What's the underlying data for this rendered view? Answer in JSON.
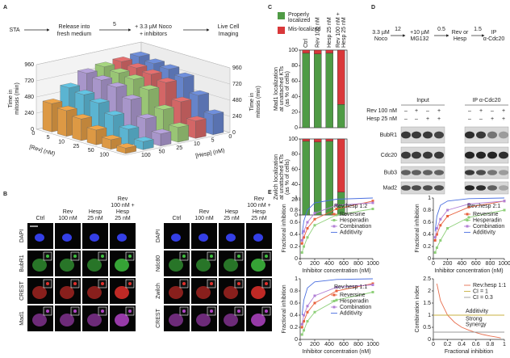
{
  "panels": {
    "A": {
      "label": "A",
      "flow": {
        "steps": [
          [
            "STA"
          ],
          [
            "Release into",
            "fresh medium"
          ],
          [
            "+ 3.3 µM Noco",
            "+ inhibitors"
          ],
          [
            "Live Cell",
            "Imaging"
          ]
        ],
        "time": "5"
      },
      "chart": {
        "type": "bar3d",
        "z_label": [
          "Time in",
          "mitosis (min)"
        ],
        "x_label": "[Rev] (nM)",
        "y_label": "[Hesp] (nM)",
        "rev_levels": [
          0,
          5,
          10,
          25,
          50,
          100
        ],
        "hesp_levels": [
          0,
          5,
          10,
          25,
          50,
          100
        ],
        "zlim": [
          0,
          960
        ],
        "zticks": [
          0,
          240,
          480,
          720,
          960
        ],
        "series": [
          {
            "color": "#6f8fdc",
            "values": [
              840,
              800,
              780,
              720,
              520,
              300
            ]
          },
          {
            "color": "#e56f6f",
            "values": [
              820,
              790,
              760,
              700,
              480,
              260
            ]
          },
          {
            "color": "#a6d67f",
            "values": [
              800,
              770,
              740,
              650,
              420,
              220
            ]
          },
          {
            "color": "#b7a3dc",
            "values": [
              760,
              720,
              680,
              560,
              340,
              180
            ]
          },
          {
            "color": "#63c4e3",
            "values": [
              600,
              560,
              500,
              380,
              240,
              120
            ]
          },
          {
            "color": "#f0a64a",
            "values": [
              420,
              380,
              320,
              220,
              140,
              80
            ]
          }
        ]
      }
    },
    "B": {
      "label": "B",
      "left": {
        "columns": [
          [
            "Ctrl"
          ],
          [
            "Rev",
            "100 nM"
          ],
          [
            "Hesp",
            "25 nM"
          ],
          [
            "Rev",
            "100 nM +",
            "Hesp",
            "25 nM"
          ]
        ],
        "rows": [
          "DAPI",
          "BubR1",
          "CREST",
          "Mad1"
        ]
      },
      "right": {
        "columns": [
          [
            "Ctrl"
          ],
          [
            "Rev",
            "100 nM"
          ],
          [
            "Hesp",
            "25 nM"
          ],
          [
            "Rev",
            "100 nM +",
            "Hesp",
            "25 nM"
          ]
        ],
        "rows": [
          "DAPI",
          "Ndc80",
          "Zwilch",
          "CREST"
        ]
      }
    },
    "C": {
      "label": "C",
      "chart": {
        "type": "stacked_bar",
        "categories": [
          [
            "Ctrl"
          ],
          [
            "Rev 100 nM"
          ],
          [
            "Hesp 25 nM"
          ],
          [
            "Rev 100 nM +",
            "Hesp 25 nM"
          ]
        ],
        "series": [
          {
            "name": [
              "Properly",
              "localized"
            ],
            "color": "#4f9b45"
          },
          {
            "name": [
              "Mis-localized"
            ],
            "color": "#d9383a"
          }
        ],
        "charts": [
          {
            "y_label": [
              "Mad1 localization",
              "at unattached KTs",
              "(as % of cells)"
            ],
            "ylim": [
              0,
              100
            ],
            "yticks": [
              0,
              20,
              40,
              60,
              80,
              100
            ],
            "values": [
              [
                96,
                95,
                96,
                30
              ],
              [
                4,
                5,
                4,
                70
              ]
            ]
          },
          {
            "y_label": [
              "Zwilch localization",
              "at unattached KTs",
              "(as % of cells)"
            ],
            "ylim": [
              0,
              100
            ],
            "yticks": [
              0,
              20,
              40,
              60,
              80,
              100
            ],
            "values": [
              [
                97,
                96,
                97,
                30
              ],
              [
                3,
                4,
                3,
                70
              ]
            ]
          }
        ]
      }
    },
    "D": {
      "label": "D",
      "flow": {
        "steps": [
          [
            "3.3 µM",
            "Noco"
          ],
          [
            "+10 µM",
            "MG132"
          ],
          [
            "Rev or",
            "Hesp"
          ],
          [
            "IP",
            "α-Cdc20"
          ]
        ],
        "times": [
          "12",
          "0.5",
          "1.5"
        ]
      },
      "groups": [
        "Input",
        "IP α-Cdc20"
      ],
      "conditions": [
        {
          "name": "Rev 100 nM",
          "signs": [
            "–",
            "+",
            "–",
            "+",
            "–",
            "+",
            "–",
            "+"
          ]
        },
        {
          "name": "Hesp 25 nM",
          "signs": [
            "–",
            "–",
            "+",
            "+",
            "–",
            "–",
            "+",
            "+"
          ]
        }
      ],
      "blots": [
        "BubR1",
        "Cdc20",
        "Bub3",
        "Mad2"
      ]
    },
    "E": {
      "label": "E",
      "plots": [
        {
          "type": "line",
          "title": "Rev:hesp 1:2",
          "x_label": "Inhibitor concentration (nM)",
          "y_label": "Fractional inhibition",
          "xlim": [
            0,
            1000
          ],
          "xticks": [
            0,
            200,
            400,
            600,
            800,
            1000
          ],
          "ylim": [
            0,
            1
          ],
          "yticks": [
            0,
            0.2,
            0.4,
            0.6,
            0.8,
            1
          ],
          "series": [
            {
              "name": "Reversine",
              "color": "#e8603c",
              "marker": true,
              "x": [
                25,
                50,
                100,
                200,
                500,
                1000
              ],
              "values": [
                0.25,
                0.35,
                0.5,
                0.65,
                0.82,
                0.95
              ]
            },
            {
              "name": "Hesperadin",
              "color": "#8fd07a",
              "marker": true,
              "x": [
                25,
                50,
                100,
                200,
                500,
                1000
              ],
              "values": [
                0.1,
                0.2,
                0.35,
                0.55,
                0.72,
                0.82
              ]
            },
            {
              "name": "Combination",
              "color": "#b27fd6",
              "marker": true,
              "x": [
                25,
                50,
                100,
                200,
                500,
                1000
              ],
              "values": [
                0.3,
                0.45,
                0.6,
                0.75,
                0.88,
                0.92
              ]
            },
            {
              "name": "Additivity",
              "color": "#4a6fe0",
              "marker": false,
              "x": [
                25,
                50,
                100,
                200,
                500,
                1000
              ],
              "values": [
                0.4,
                0.62,
                0.8,
                0.92,
                0.98,
                1
              ]
            }
          ]
        },
        {
          "type": "line",
          "title": "Rev:hesp 2:1",
          "x_label": "Inhibitor concentration (nM)",
          "y_label": "Fractional inhibition",
          "xlim": [
            0,
            1000
          ],
          "xticks": [
            0,
            200,
            400,
            600,
            800,
            1000
          ],
          "ylim": [
            0,
            1
          ],
          "yticks": [
            0,
            0.2,
            0.4,
            0.6,
            0.8,
            1
          ],
          "series": [
            {
              "name": "Reversine",
              "color": "#e8603c",
              "marker": true,
              "x": [
                25,
                50,
                100,
                200,
                500,
                1000
              ],
              "values": [
                0.3,
                0.4,
                0.55,
                0.7,
                0.85,
                0.95
              ]
            },
            {
              "name": "Hesperadin",
              "color": "#8fd07a",
              "marker": true,
              "x": [
                25,
                50,
                100,
                200,
                500,
                1000
              ],
              "values": [
                0.1,
                0.18,
                0.3,
                0.5,
                0.68,
                0.8
              ]
            },
            {
              "name": "Combination",
              "color": "#b27fd6",
              "marker": true,
              "x": [
                25,
                50,
                100,
                200,
                500,
                1000
              ],
              "values": [
                0.35,
                0.5,
                0.65,
                0.8,
                0.9,
                0.95
              ]
            },
            {
              "name": "Additivity",
              "color": "#4a6fe0",
              "marker": false,
              "x": [
                25,
                50,
                100,
                200,
                500,
                1000
              ],
              "values": [
                0.45,
                0.7,
                0.88,
                0.95,
                0.99,
                1
              ]
            }
          ]
        },
        {
          "type": "line",
          "title": "Rev:hesp 1:1",
          "x_label": "Inhibitor concentration (nM)",
          "y_label": "Fractional inhibition",
          "xlim": [
            0,
            1000
          ],
          "xticks": [
            0,
            200,
            400,
            600,
            800,
            1000
          ],
          "ylim": [
            0,
            1
          ],
          "yticks": [
            0,
            0.2,
            0.4,
            0.6,
            0.8,
            1
          ],
          "series": [
            {
              "name": "Reversine",
              "color": "#e8603c",
              "marker": true,
              "x": [
                25,
                50,
                100,
                200,
                500,
                1000
              ],
              "values": [
                0.2,
                0.3,
                0.45,
                0.6,
                0.8,
                0.92
              ]
            },
            {
              "name": "Hesperadin",
              "color": "#8fd07a",
              "marker": true,
              "x": [
                25,
                50,
                100,
                200,
                500,
                1000
              ],
              "values": [
                0.08,
                0.15,
                0.3,
                0.45,
                0.65,
                0.78
              ]
            },
            {
              "name": "Combination",
              "color": "#b27fd6",
              "marker": true,
              "x": [
                25,
                50,
                100,
                200,
                500,
                1000
              ],
              "values": [
                0.25,
                0.4,
                0.55,
                0.72,
                0.86,
                0.9
              ]
            },
            {
              "name": "Additivity",
              "color": "#4a6fe0",
              "marker": false,
              "x": [
                25,
                50,
                100,
                200,
                500,
                1000
              ],
              "values": [
                0.4,
                0.65,
                0.85,
                0.95,
                0.99,
                1
              ]
            }
          ]
        },
        {
          "type": "line",
          "x_label": "Fractional inhibition",
          "y_label": "Combination index",
          "xlim": [
            0,
            1
          ],
          "xticks": [
            0,
            0.2,
            0.4,
            0.6,
            0.8,
            1
          ],
          "ylim": [
            0,
            2.5
          ],
          "yticks": [
            0,
            0.5,
            1,
            1.5,
            2,
            2.5
          ],
          "annotations": [
            [
              "Additivity"
            ],
            [
              "Strong",
              "Synergy"
            ]
          ],
          "series": [
            {
              "name": "Rev:hesp 1:1",
              "color": "#e87050",
              "marker": false,
              "x": [
                0.05,
                0.1,
                0.2,
                0.3,
                0.4,
                0.5,
                0.6,
                0.7,
                0.8,
                0.9,
                0.95
              ],
              "values": [
                2.3,
                1.6,
                1,
                0.7,
                0.5,
                0.38,
                0.28,
                0.2,
                0.14,
                0.09,
                0.06
              ]
            },
            {
              "name": "CI = 1",
              "color": "#c8b040",
              "marker": false,
              "x": [
                0,
                1
              ],
              "values": [
                1,
                1
              ]
            },
            {
              "name": "CI = 0.3",
              "color": "#999999",
              "marker": false,
              "x": [
                0,
                1
              ],
              "values": [
                0.3,
                0.3
              ]
            }
          ]
        }
      ]
    }
  }
}
